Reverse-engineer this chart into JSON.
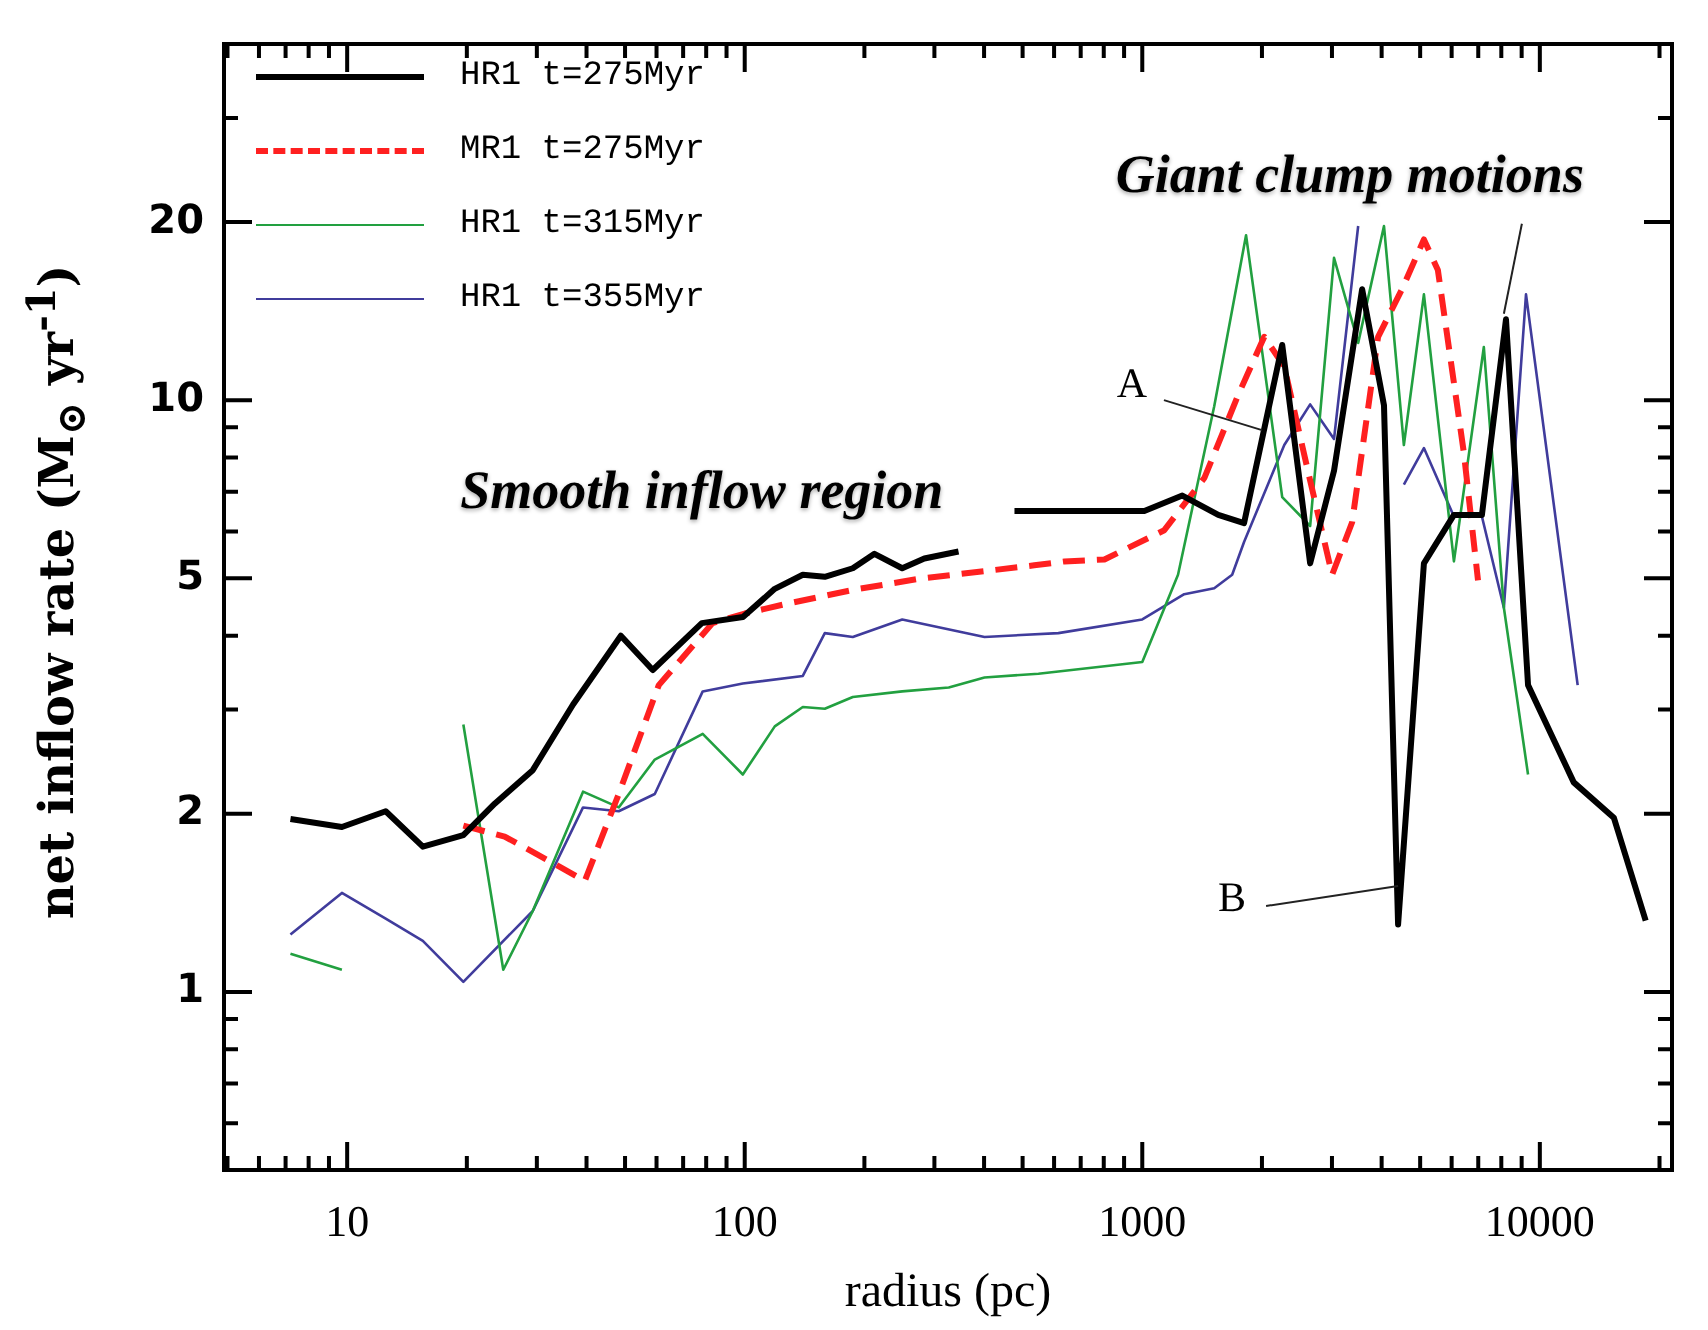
{
  "chart_data": {
    "type": "line",
    "xlabel": "radius (pc)",
    "ylabel": "net inflow rate (M$_{⊙}$ yr$^{-1}$)",
    "log": "xy",
    "legend": "top left",
    "marker": "none",
    "line_style": "solid",
    "xlim": [
      4.9,
      21500
    ],
    "ylim": [
      0.5,
      40
    ],
    "xticks": [
      {
        "value": 5,
        "label": null
      },
      {
        "value": 6,
        "label": null
      },
      {
        "value": 7,
        "label": null
      },
      {
        "value": 8,
        "label": null
      },
      {
        "value": 9,
        "label": null
      },
      10,
      {
        "value": 20,
        "label": null
      },
      {
        "value": 30,
        "label": null
      },
      {
        "value": 40,
        "label": null
      },
      {
        "value": 50,
        "label": null
      },
      {
        "value": 60,
        "label": null
      },
      {
        "value": 70,
        "label": null
      },
      {
        "value": 80,
        "label": null
      },
      {
        "value": 90,
        "label": null
      },
      100,
      {
        "value": 200,
        "label": null
      },
      {
        "value": 300,
        "label": null
      },
      {
        "value": 400,
        "label": null
      },
      {
        "value": 500,
        "label": null
      },
      {
        "value": 600,
        "label": null
      },
      {
        "value": 700,
        "label": null
      },
      {
        "value": 800,
        "label": null
      },
      {
        "value": 900,
        "label": null
      },
      1000,
      {
        "value": 2000,
        "label": null
      },
      {
        "value": 3000,
        "label": null
      },
      {
        "value": 4000,
        "label": null
      },
      {
        "value": 5000,
        "label": null
      },
      {
        "value": 6000,
        "label": null
      },
      {
        "value": 7000,
        "label": null
      },
      {
        "value": 8000,
        "label": null
      },
      {
        "value": 9000,
        "label": null
      },
      10000,
      {
        "value": 20000,
        "label": null
      }
    ],
    "yticks": [
      {
        "value": 0.6,
        "label": null
      },
      {
        "value": 0.7,
        "label": null
      },
      {
        "value": 0.8,
        "label": null
      },
      {
        "value": 0.9,
        "label": null
      },
      1,
      2,
      {
        "value": 3,
        "label": null
      },
      {
        "value": 4,
        "label": null
      },
      5,
      {
        "value": 6,
        "label": null
      },
      {
        "value": 7,
        "label": null
      },
      {
        "value": 8,
        "label": null
      },
      {
        "value": 9,
        "label": null
      },
      10,
      20,
      {
        "value": 30,
        "label": null
      },
      {
        "value": 40,
        "label": null
      }
    ],
    "series": [
      {
        "name": "HR1 t=275Myr",
        "color": "#000000",
        "x": [
          7.2,
          9.7,
          12.5,
          15.5,
          19.6,
          23.5,
          29.3,
          37,
          48.8,
          58.7,
          78,
          99,
          119,
          140,
          159,
          187,
          212,
          249,
          283,
          345,
          400,
          477,
          637,
          1012,
          1261,
          1553,
          1803,
          2249,
          2644,
          3036,
          3573,
          4055,
          4400,
          5110,
          6080,
          7150,
          8220,
          9340,
          12170,
          15350,
          18460
        ],
        "values": [
          1.96,
          1.9,
          2.02,
          1.76,
          1.84,
          2.08,
          2.37,
          3.06,
          4.0,
          3.5,
          4.2,
          4.3,
          4.8,
          5.07,
          5.03,
          5.2,
          5.5,
          5.2,
          5.4,
          5.55,
          null,
          6.5,
          6.5,
          6.5,
          6.9,
          6.4,
          6.2,
          12.4,
          5.3,
          7.6,
          15.4,
          9.8,
          1.3,
          5.3,
          6.4,
          6.4,
          13.7,
          3.3,
          2.26,
          1.97,
          1.32
        ]
      },
      {
        "name": "MR1 t=275Myr",
        "color": "#ff2020",
        "line_style": "dashed",
        "x": [
          19.6,
          24.9,
          34.1,
          39.6,
          48.2,
          60.8,
          83,
          100,
          126,
          187,
          274,
          535,
          637,
          803,
          1136,
          1433,
          1742,
          2027,
          2276,
          2614,
          3003,
          3372,
          3919,
          4500,
          5110,
          5540,
          6440,
          6990
        ],
        "values": [
          1.91,
          1.83,
          1.63,
          1.54,
          2.16,
          3.3,
          4.2,
          4.36,
          4.52,
          4.78,
          4.99,
          5.26,
          5.34,
          5.38,
          6.03,
          7.39,
          10.2,
          12.8,
          11.4,
          7.56,
          5.07,
          6.22,
          12.8,
          15.4,
          18.7,
          16.6,
          8.15,
          4.96
        ]
      },
      {
        "name": "HR1 t=315Myr",
        "color": "#22a040",
        "x": [
          7.2,
          9.7,
          10.1,
          14.8,
          19.6,
          24.7,
          29.3,
          39.2,
          48.2,
          59.4,
          78.4,
          98.9,
          119,
          140,
          159,
          187,
          249,
          326,
          401,
          548,
          1000,
          1230,
          1517,
          1824,
          2249,
          2644,
          3036,
          3492,
          4055,
          4550,
          5110,
          6080,
          7230,
          8120,
          9340
        ],
        "values": [
          1.16,
          1.09,
          null,
          null,
          2.83,
          1.09,
          1.37,
          2.18,
          2.05,
          2.47,
          2.73,
          2.33,
          2.81,
          3.03,
          3.01,
          3.15,
          3.22,
          3.27,
          3.4,
          3.45,
          3.61,
          5.07,
          9.77,
          19.0,
          6.86,
          6.13,
          17.4,
          12.5,
          19.7,
          8.4,
          15.1,
          5.34,
          12.3,
          4.46,
          2.33
        ]
      },
      {
        "name": "HR1 t=355Myr",
        "color": "#403c9c",
        "x": [
          7.2,
          9.7,
          12.5,
          15.5,
          19.6,
          29.3,
          39.2,
          48.2,
          59.4,
          78.4,
          98.9,
          140,
          159,
          187,
          249,
          401,
          615,
          1000,
          1275,
          1517,
          1683,
          1803,
          2276,
          2644,
          3036,
          3492,
          3615,
          4500,
          4550,
          5110,
          6080,
          7150,
          8120,
          9230,
          12450
        ],
        "values": [
          1.25,
          1.47,
          1.33,
          1.22,
          1.04,
          1.37,
          2.05,
          2.02,
          2.16,
          3.22,
          3.32,
          3.42,
          4.04,
          3.98,
          4.26,
          3.98,
          4.04,
          4.26,
          4.7,
          4.81,
          5.07,
          5.76,
          8.4,
          9.84,
          8.6,
          19.7,
          null,
          null,
          7.2,
          8.3,
          6.36,
          6.36,
          4.46,
          15.1,
          3.3
        ]
      }
    ],
    "annotations": [
      "Smooth inflow region",
      {
        "text": "Giant clump motions",
        "x": 8120,
        "y": 14.0
      },
      {
        "text": "A",
        "x": 2000,
        "y": 8.9
      },
      {
        "text": "B",
        "x": 4400,
        "y": 1.51
      }
    ]
  }
}
